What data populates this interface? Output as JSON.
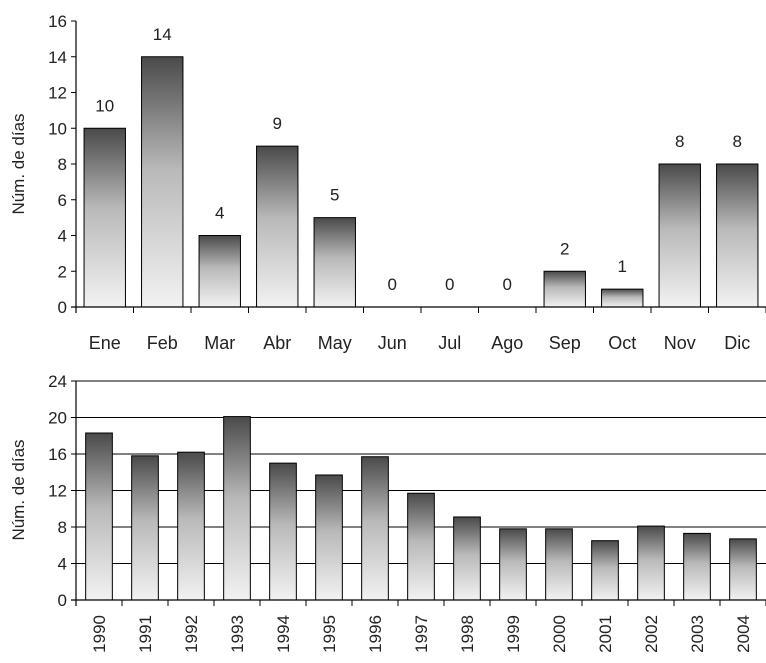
{
  "colors": {
    "bar_top": "#4a4a4a",
    "bar_bottom": "#f2f2f2",
    "axis": "#000000",
    "grid": "#000000",
    "text": "#222222"
  },
  "chart_data": [
    {
      "type": "bar",
      "ylabel": "Núm. de días",
      "xlabel": "",
      "categories": [
        "Ene",
        "Feb",
        "Mar",
        "Abr",
        "May",
        "Jun",
        "Jul",
        "Ago",
        "Sep",
        "Oct",
        "Nov",
        "Dic"
      ],
      "values": [
        10,
        14,
        4,
        9,
        5,
        0,
        0,
        0,
        2,
        1,
        8,
        8
      ],
      "data_labels": [
        "10",
        "14",
        "4",
        "9",
        "5",
        "0",
        "0",
        "0",
        "2",
        "1",
        "8",
        "8"
      ],
      "ylim": [
        0,
        16
      ],
      "yticks": [
        "0",
        "2",
        "4",
        "6",
        "8",
        "10",
        "12",
        "14",
        "16"
      ],
      "grid": false
    },
    {
      "type": "bar",
      "ylabel": "Núm. de días",
      "xlabel": "",
      "categories": [
        "1990",
        "1991",
        "1992",
        "1993",
        "1994",
        "1995",
        "1996",
        "1997",
        "1998",
        "1999",
        "2000",
        "2001",
        "2002",
        "2003",
        "2004"
      ],
      "values": [
        18.3,
        15.8,
        16.2,
        20.1,
        15,
        13.7,
        15.7,
        11.7,
        9.1,
        7.8,
        7.8,
        6.5,
        8.1,
        7.3,
        6.7
      ],
      "ylim": [
        0,
        24
      ],
      "yticks": [
        "0",
        "4",
        "8",
        "12",
        "16",
        "20",
        "24"
      ],
      "grid": true
    }
  ]
}
